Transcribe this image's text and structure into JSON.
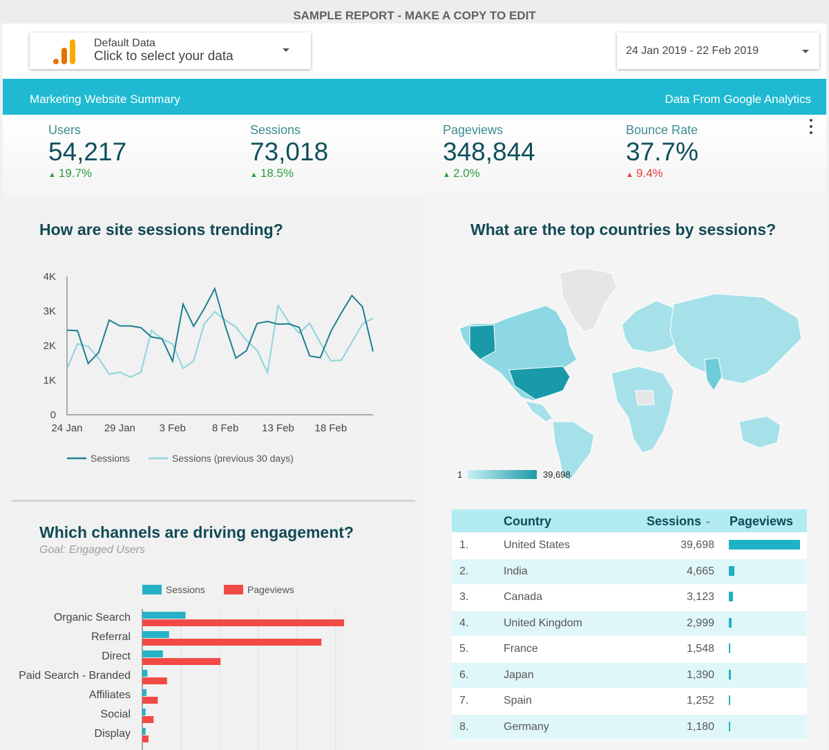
{
  "banner": "SAMPLE REPORT - MAKE A COPY TO EDIT",
  "data_selector": {
    "line1": "Default Data",
    "line2": "Click to select your data"
  },
  "date_range": "24 Jan 2019 - 22 Feb 2019",
  "header": {
    "left": "Marketing Website Summary",
    "right": "Data From Google Analytics"
  },
  "kpis": [
    {
      "label": "Users",
      "value": "54,217",
      "change": "19.7%",
      "direction": "up"
    },
    {
      "label": "Sessions",
      "value": "73,018",
      "change": "18.5%",
      "direction": "up"
    },
    {
      "label": "Pageviews",
      "value": "348,844",
      "change": "2.0%",
      "direction": "up"
    },
    {
      "label": "Bounce Rate",
      "value": "37.7%",
      "change": "9.4%",
      "direction": "down"
    }
  ],
  "sessions_trend": {
    "title": "How are site sessions trending?",
    "chart_data": {
      "type": "line",
      "x_labels": [
        "24 Jan",
        "29 Jan",
        "3 Feb",
        "8 Feb",
        "13 Feb",
        "18 Feb"
      ],
      "y_ticks": [
        "0",
        "1K",
        "2K",
        "3K",
        "4K"
      ],
      "ylim": [
        0,
        4000
      ],
      "series": [
        {
          "name": "Sessions",
          "color": "#1a7f8e",
          "values": [
            2450,
            2430,
            1480,
            1800,
            2740,
            2570,
            2570,
            2520,
            2250,
            2200,
            1550,
            3200,
            2560,
            3070,
            3650,
            2570,
            1640,
            1850,
            2640,
            2700,
            2620,
            2630,
            2530,
            1700,
            1650,
            2410,
            2950,
            3450,
            3120,
            1830
          ]
        },
        {
          "name": "Sessions (previous 30 days)",
          "color": "#8dd3dc",
          "values": [
            1330,
            2050,
            1980,
            1630,
            1170,
            1230,
            1090,
            1230,
            2440,
            2190,
            2050,
            1340,
            1560,
            2630,
            2980,
            2740,
            2540,
            2150,
            1870,
            1220,
            3160,
            2690,
            2360,
            2650,
            2080,
            1560,
            1580,
            2100,
            2630,
            2790
          ]
        }
      ]
    }
  },
  "countries_map": {
    "title": "What are the top countries by sessions?",
    "legend_min": "1",
    "legend_max": "39,698"
  },
  "channels": {
    "title": "Which channels are driving engagement?",
    "goal": "Goal: Engaged Users",
    "chart_data": {
      "type": "bar",
      "orientation": "horizontal",
      "categories": [
        "Organic Search",
        "Referral",
        "Direct",
        "Paid Search - Branded",
        "Affiliates",
        "Social",
        "Display"
      ],
      "series": [
        {
          "name": "Sessions",
          "color": "#26b2c6",
          "values": [
            21,
            13,
            10,
            2.5,
            2,
            1.6,
            1.6
          ]
        },
        {
          "name": "Pageviews",
          "color": "#f14a46",
          "values": [
            98,
            87,
            38,
            12,
            7.5,
            5.5,
            3
          ]
        }
      ]
    }
  },
  "country_table": {
    "headers": {
      "country": "Country",
      "sessions": "Sessions",
      "sort": "⌄",
      "pageviews": "Pageviews"
    },
    "rows": [
      {
        "idx": "1.",
        "country": "United States",
        "sessions": "39,698",
        "pv_frac": 1.0
      },
      {
        "idx": "2.",
        "country": "India",
        "sessions": "4,665",
        "pv_frac": 0.08
      },
      {
        "idx": "3.",
        "country": "Canada",
        "sessions": "3,123",
        "pv_frac": 0.06
      },
      {
        "idx": "4.",
        "country": "United Kingdom",
        "sessions": "2,999",
        "pv_frac": 0.035
      },
      {
        "idx": "5.",
        "country": "France",
        "sessions": "1,548",
        "pv_frac": 0.02
      },
      {
        "idx": "6.",
        "country": "Japan",
        "sessions": "1,390",
        "pv_frac": 0.03
      },
      {
        "idx": "7.",
        "country": "Spain",
        "sessions": "1,252",
        "pv_frac": 0.02
      },
      {
        "idx": "8.",
        "country": "Germany",
        "sessions": "1,180",
        "pv_frac": 0.02
      }
    ]
  }
}
